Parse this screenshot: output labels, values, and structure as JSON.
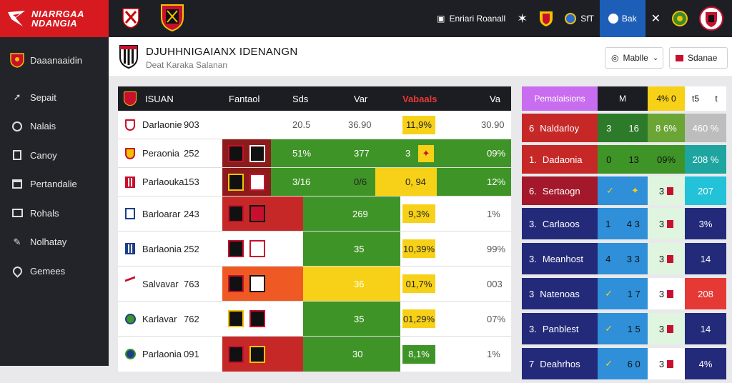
{
  "brand": {
    "line1": "NIARRGAA",
    "line2": "NDANGIA",
    "color": "#d71920"
  },
  "topbar": {
    "item1": "Enriari Roanall",
    "item2": "SfT",
    "item3": "Bak"
  },
  "sidebar": {
    "items": [
      {
        "label": "Daaanaaidin",
        "icon": "team-crest-icon"
      },
      {
        "label": "Sepait",
        "icon": "pin-icon"
      },
      {
        "label": "Nalais",
        "icon": "clock-icon"
      },
      {
        "label": "Canoy",
        "icon": "note-icon"
      },
      {
        "label": "Pertandalie",
        "icon": "calendar-icon"
      },
      {
        "label": "Rohals",
        "icon": "monitor-icon"
      },
      {
        "label": "Nolhatay",
        "icon": "edit-icon"
      },
      {
        "label": "Gemees",
        "icon": "location-icon"
      }
    ]
  },
  "header": {
    "title": "DJUHHNIGAIANX IDENANGN",
    "subtitle": "Deat Karaka Salanan",
    "dropdown1": "Mablle",
    "dropdown2": "Sdanae"
  },
  "main_table": {
    "headers": [
      "ISUAN",
      "Fantaol",
      "Sds",
      "Var",
      "Vabaals",
      "Va"
    ],
    "rows": [
      {
        "team": "Darlaonie",
        "num": "903",
        "c1": "20.5",
        "c2": "36.90",
        "c3": "11,9%",
        "c4": "30.90"
      },
      {
        "team": "Peraonia",
        "num": "252",
        "c1": "51%",
        "c2": "377",
        "c3": "3",
        "c4": "09%"
      },
      {
        "team": "Parlaouka",
        "num": "153",
        "c1": "3/16",
        "c2": "0/6",
        "c3": "0, 94",
        "c4": "12%"
      },
      {
        "team": "Barloarar",
        "num": "243",
        "c1": "",
        "c2": "269",
        "c3": "9,3%",
        "c4": "1%"
      },
      {
        "team": "Barlaonia",
        "num": "252",
        "c1": "",
        "c2": "35",
        "c3": "10,39%",
        "c4": "99%"
      },
      {
        "team": "Salvavar",
        "num": "763",
        "c1": "",
        "c2": "36",
        "c3": "01,7%",
        "c4": "003"
      },
      {
        "team": "Karlavar",
        "num": "762",
        "c1": "",
        "c2": "35",
        "c3": "01,29%",
        "c4": "07%"
      },
      {
        "team": "Parlaonia",
        "num": "091",
        "c1": "",
        "c2": "30",
        "c3": "8,1%",
        "c4": "1%"
      }
    ]
  },
  "right_table": {
    "headers": [
      "Pemalaisions",
      "M",
      "4% 0",
      "t5",
      "t"
    ],
    "rows": [
      {
        "rank": "6",
        "name": "Naldarloy",
        "a": "3",
        "b": "16",
        "c": "8 6%",
        "d": "460 %"
      },
      {
        "rank": "1.",
        "name": "Dadaonia",
        "a": "0",
        "b": "13",
        "c": "09%",
        "d": "208 %"
      },
      {
        "rank": "6.",
        "name": "Sertaogn",
        "a": "",
        "b": "",
        "c": "3",
        "d": "207"
      },
      {
        "rank": "3.",
        "name": "Carlaoos",
        "a": "1",
        "b": "4 3",
        "c": "3",
        "d": "3%"
      },
      {
        "rank": "3.",
        "name": "Meanhost",
        "a": "4",
        "b": "3 3",
        "c": "3",
        "d": "14"
      },
      {
        "rank": "3",
        "name": "Natenoas",
        "a": "",
        "b": "1 7",
        "c": "3",
        "d": "208"
      },
      {
        "rank": "3.",
        "name": "Panblest",
        "a": "",
        "b": "1 5",
        "c": "3",
        "d": "14"
      },
      {
        "rank": "7",
        "name": "Deahrhos",
        "a": "",
        "b": "6 0",
        "c": "3",
        "d": "4%"
      }
    ]
  }
}
